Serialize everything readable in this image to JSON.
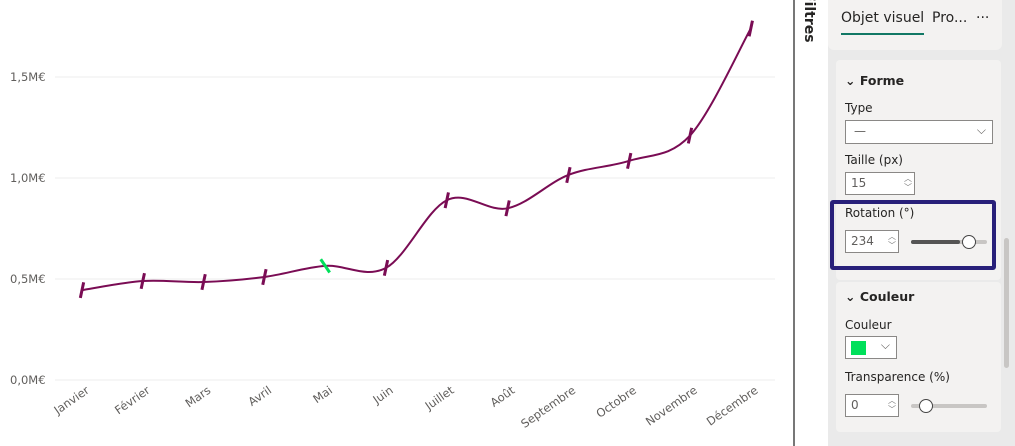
{
  "chart_data": {
    "type": "line",
    "categories": [
      "Janvier",
      "Février",
      "Mars",
      "Avril",
      "Mai",
      "Juin",
      "Juillet",
      "Août",
      "Septembre",
      "Octobre",
      "Novembre",
      "Décembre"
    ],
    "values": [
      0.445,
      0.49,
      0.485,
      0.51,
      0.565,
      0.555,
      0.89,
      0.85,
      1.015,
      1.085,
      1.21,
      1.74
    ],
    "unit": "M€",
    "ylim": [
      0,
      1.8
    ],
    "yticks": [
      {
        "v": 0,
        "label": "0,0M€"
      },
      {
        "v": 0.5,
        "label": "0,5M€"
      },
      {
        "v": 1.0,
        "label": "1,0M€"
      },
      {
        "v": 1.5,
        "label": "1,5M€"
      }
    ],
    "line_color": "#7a0c54",
    "highlight_marker_color": "#00e05a",
    "highlighted_category": "Mai",
    "grid": true
  },
  "filters_label": "Filtres",
  "pane": {
    "tabs": [
      {
        "label": "Objet visuel"
      },
      {
        "label": "Pro..."
      }
    ],
    "more": "···",
    "forme": {
      "title": "Forme",
      "type_label": "Type",
      "type_value": "—",
      "size_label": "Taille (px)",
      "size_value": "15",
      "rotation_label": "Rotation (°)",
      "rotation_value": "234",
      "rotation_slider": 0.65
    },
    "couleur": {
      "title": "Couleur",
      "color_label": "Couleur",
      "color": "#00e05a",
      "transparency_label": "Transparence (%)",
      "transparency_value": "0",
      "transparency_slider": 0
    }
  }
}
